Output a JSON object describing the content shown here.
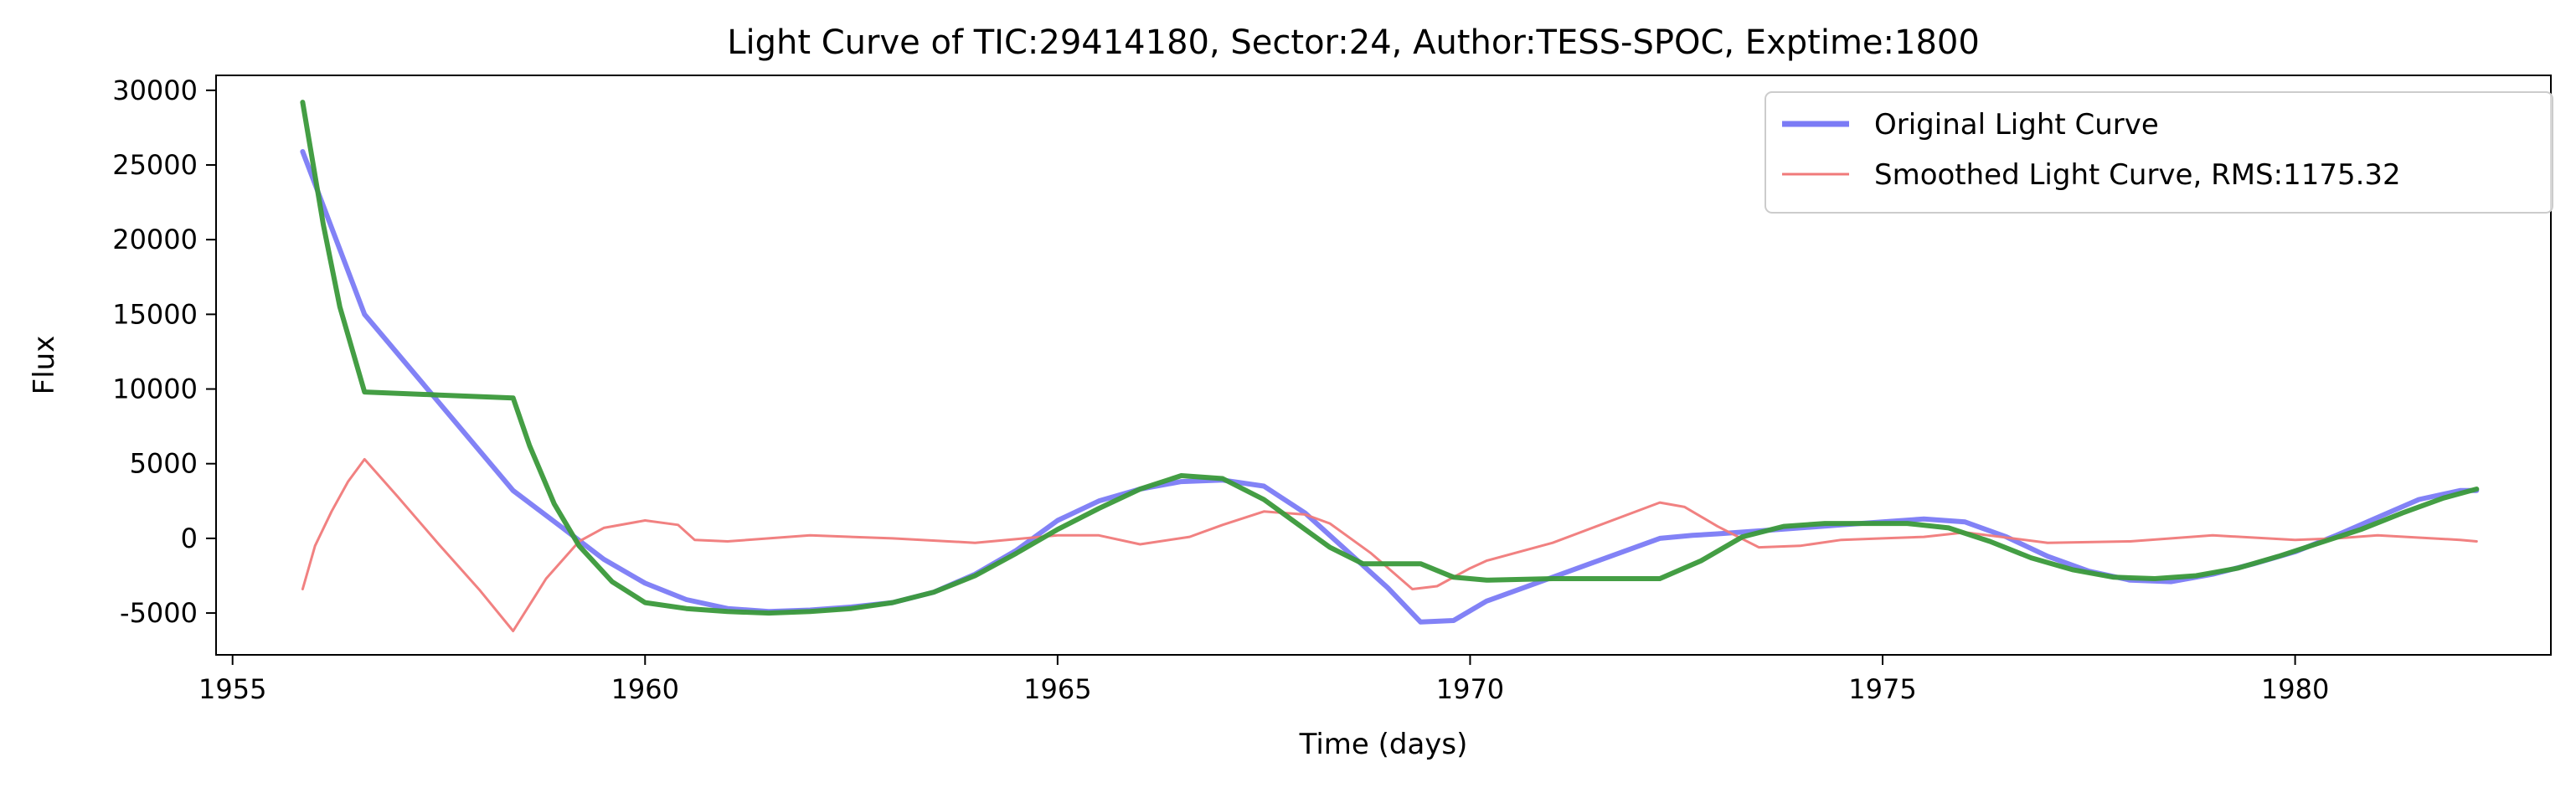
{
  "chart_data": {
    "type": "line",
    "title": "Light Curve of TIC:29414180, Sector:24, Author:TESS-SPOC, Exptime:1800",
    "xlabel": "Time (days)",
    "ylabel": "Flux",
    "xlim": [
      1954.8,
      1983.1
    ],
    "ylim": [
      -7800,
      31000
    ],
    "xticks": [
      1955,
      1960,
      1965,
      1970,
      1975,
      1980
    ],
    "yticks": [
      -5000,
      0,
      5000,
      10000,
      15000,
      20000,
      25000,
      30000
    ],
    "grid": false,
    "legend_position": "top-right",
    "series": [
      {
        "name": "Original Light Curve",
        "color": "#7b7bf5",
        "x": [
          1955.85,
          1956.6,
          1958.4,
          1959.0,
          1959.5,
          1960.0,
          1960.5,
          1961.0,
          1961.5,
          1962.0,
          1962.5,
          1963.0,
          1963.5,
          1964.0,
          1964.5,
          1965.0,
          1965.5,
          1966.0,
          1966.5,
          1967.0,
          1967.5,
          1968.0,
          1968.5,
          1969.0,
          1969.4,
          1969.8,
          1970.2,
          1971.0,
          1972.3,
          1972.7,
          1973.0,
          1973.5,
          1974.0,
          1974.5,
          1975.0,
          1975.5,
          1976.0,
          1976.5,
          1977.0,
          1977.5,
          1978.0,
          1978.5,
          1979.0,
          1979.5,
          1980.0,
          1980.5,
          1981.0,
          1981.5,
          1982.0,
          1982.2
        ],
        "y": [
          25900,
          15000,
          3200,
          700,
          -1400,
          -3000,
          -4100,
          -4700,
          -4900,
          -4800,
          -4600,
          -4300,
          -3600,
          -2400,
          -800,
          1200,
          2500,
          3300,
          3800,
          3900,
          3500,
          1700,
          -800,
          -3300,
          -5600,
          -5500,
          -4200,
          -2600,
          0,
          200,
          300,
          500,
          700,
          900,
          1100,
          1300,
          1100,
          100,
          -1200,
          -2200,
          -2800,
          -2900,
          -2400,
          -1700,
          -900,
          200,
          1400,
          2600,
          3200,
          3200
        ]
      },
      {
        "name": "Smoothed Light Curve, RMS:1175.32",
        "color": "#f07a7a",
        "x": [
          1955.85,
          1956.0,
          1956.2,
          1956.4,
          1956.6,
          1957.0,
          1957.5,
          1958.0,
          1958.4,
          1958.8,
          1959.2,
          1959.5,
          1960.0,
          1960.4,
          1960.6,
          1961.0,
          1962.0,
          1963.0,
          1964.0,
          1965.0,
          1965.5,
          1966.0,
          1966.6,
          1967.0,
          1967.5,
          1968.0,
          1968.3,
          1968.8,
          1969.3,
          1969.6,
          1970.0,
          1970.2,
          1971.0,
          1972.3,
          1972.6,
          1973.0,
          1973.5,
          1974.0,
          1974.5,
          1975.0,
          1975.5,
          1976.0,
          1977.0,
          1978.0,
          1979.0,
          1980.0,
          1980.5,
          1981.0,
          1982.0,
          1982.2
        ],
        "y": [
          -3400,
          -500,
          1800,
          3800,
          5300,
          2800,
          -400,
          -3500,
          -6200,
          -2700,
          -200,
          700,
          1200,
          900,
          -100,
          -200,
          200,
          0,
          -300,
          200,
          200,
          -400,
          100,
          900,
          1800,
          1600,
          1000,
          -1000,
          -3400,
          -3200,
          -2000,
          -1500,
          -300,
          2400,
          2100,
          800,
          -600,
          -500,
          -100,
          0,
          100,
          400,
          -300,
          -200,
          200,
          -100,
          0,
          200,
          -100,
          -200
        ]
      },
      {
        "name": "",
        "color": "#3a993a",
        "x": [
          1955.85,
          1956.1,
          1956.3,
          1956.6,
          1957.5,
          1958.4,
          1958.6,
          1958.9,
          1959.2,
          1959.6,
          1960.0,
          1960.5,
          1961.0,
          1961.5,
          1962.0,
          1962.5,
          1963.0,
          1963.5,
          1964.0,
          1964.5,
          1965.0,
          1965.5,
          1966.0,
          1966.5,
          1967.0,
          1967.5,
          1968.0,
          1968.3,
          1968.7,
          1969.4,
          1969.8,
          1970.2,
          1971.0,
          1972.3,
          1972.8,
          1973.3,
          1973.8,
          1974.3,
          1974.8,
          1975.3,
          1975.8,
          1976.3,
          1976.8,
          1977.3,
          1977.8,
          1978.3,
          1978.8,
          1979.3,
          1979.8,
          1980.3,
          1980.8,
          1981.3,
          1981.8,
          1982.2
        ],
        "y": [
          29200,
          21000,
          15500,
          9800,
          9600,
          9400,
          6200,
          2300,
          -500,
          -2900,
          -4300,
          -4700,
          -4900,
          -5000,
          -4900,
          -4700,
          -4300,
          -3600,
          -2500,
          -1000,
          600,
          2000,
          3300,
          4200,
          4000,
          2600,
          600,
          -600,
          -1700,
          -1700,
          -2600,
          -2800,
          -2700,
          -2700,
          -1500,
          100,
          800,
          1000,
          1000,
          1000,
          700,
          -200,
          -1300,
          -2100,
          -2600,
          -2700,
          -2500,
          -2000,
          -1200,
          -300,
          600,
          1700,
          2700,
          3300
        ]
      }
    ]
  }
}
